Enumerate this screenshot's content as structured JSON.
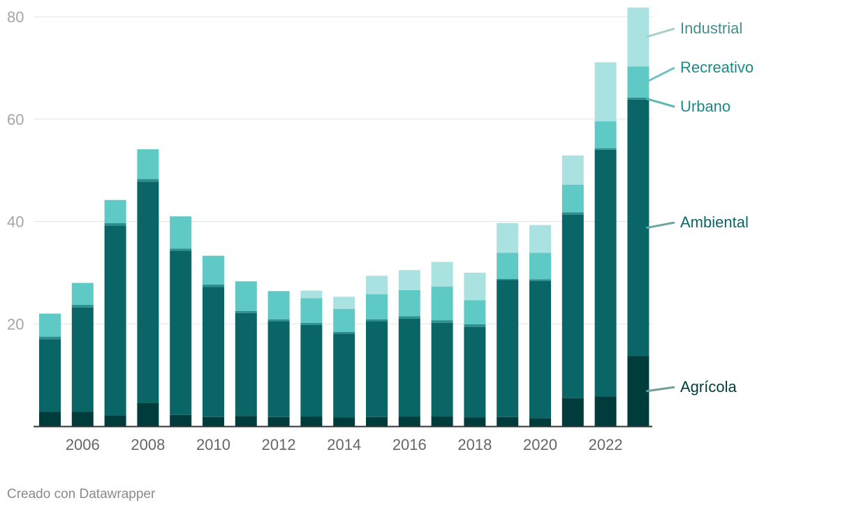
{
  "chart_data": {
    "type": "bar",
    "stacked": true,
    "x": [
      2005,
      2006,
      2007,
      2008,
      2009,
      2010,
      2011,
      2012,
      2013,
      2014,
      2015,
      2016,
      2017,
      2018,
      2019,
      2020,
      2021,
      2022,
      2023
    ],
    "x_tick_labels": [
      "2006",
      "2008",
      "2010",
      "2012",
      "2014",
      "2016",
      "2018",
      "2020",
      "2022"
    ],
    "x_tick_values": [
      2006,
      2008,
      2010,
      2012,
      2014,
      2016,
      2018,
      2020,
      2022
    ],
    "y_ticks": [
      20,
      40,
      60,
      80
    ],
    "ylim": [
      0,
      80
    ],
    "grid": true,
    "legend_placement": "right",
    "series": [
      {
        "name": "Agrícola",
        "color": "#003c3c",
        "values": [
          2.8,
          2.8,
          2.1,
          4.5,
          2.2,
          1.8,
          2.0,
          1.8,
          1.9,
          1.7,
          1.8,
          1.9,
          1.9,
          1.7,
          1.8,
          1.6,
          5.5,
          5.8,
          13.7
        ]
      },
      {
        "name": "Ambiental",
        "color": "#0a6666",
        "values": [
          14.2,
          20.4,
          37.1,
          43.3,
          32.1,
          25.4,
          20.1,
          18.7,
          17.9,
          16.4,
          18.7,
          19.1,
          18.3,
          17.7,
          26.8,
          26.8,
          35.8,
          48.2,
          50.1
        ]
      },
      {
        "name": "Urbano",
        "color": "#2b8f8d",
        "values": [
          0.5,
          0.5,
          0.5,
          0.5,
          0.4,
          0.5,
          0.4,
          0.4,
          0.4,
          0.3,
          0.4,
          0.5,
          0.5,
          0.5,
          0.2,
          0.3,
          0.5,
          0.3,
          0.4
        ]
      },
      {
        "name": "Recreativo",
        "color": "#5fc9c6",
        "values": [
          4.5,
          4.3,
          4.5,
          5.8,
          6.3,
          5.6,
          5.8,
          5.5,
          4.8,
          4.5,
          4.9,
          5.1,
          6.6,
          4.7,
          5.1,
          5.2,
          5.4,
          5.3,
          6.1
        ]
      },
      {
        "name": "Industrial",
        "color": "#a9e2e0",
        "values": [
          0,
          0,
          0,
          0,
          0,
          0,
          0,
          0,
          1.5,
          2.4,
          3.6,
          3.9,
          4.8,
          5.4,
          5.8,
          5.4,
          5.7,
          11.5,
          11.5
        ]
      }
    ],
    "legend": [
      {
        "name": "Industrial",
        "text_color": "#4a8c8a",
        "line_color": "#a9cfcd"
      },
      {
        "name": "Recreativo",
        "text_color": "#1a8a86",
        "line_color": "#72c2bf"
      },
      {
        "name": "Urbano",
        "text_color": "#1a8a86",
        "line_color": "#5fb7b4"
      },
      {
        "name": "Ambiental",
        "text_color": "#0a6666",
        "line_color": "#6aa6a4"
      },
      {
        "name": "Agrícola",
        "text_color": "#003c3c",
        "line_color": "#6f9d9b"
      }
    ]
  },
  "footer": {
    "credit": "Creado con Datawrapper"
  }
}
